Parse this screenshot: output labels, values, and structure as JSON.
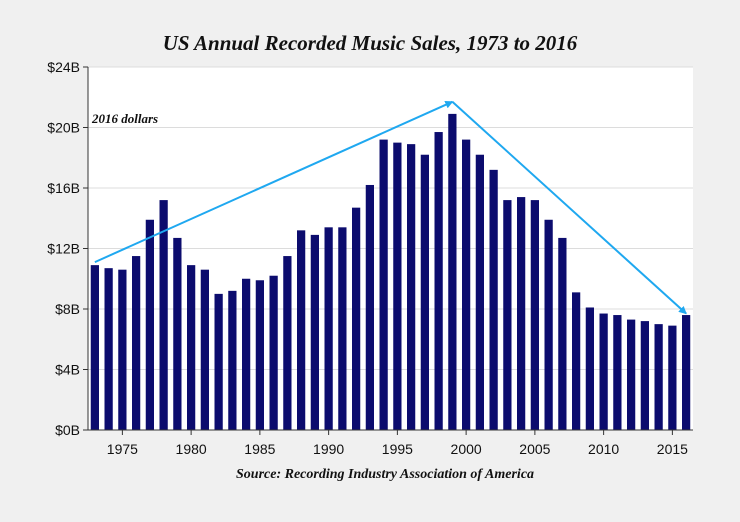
{
  "chart_data": {
    "type": "bar",
    "title": "US Annual Recorded Music Sales, 1973 to 2016",
    "source": "Source: Recording Industry Association of America",
    "unit_note": "2016 dollars",
    "xlabel": "",
    "ylabel": "",
    "ylim": [
      0,
      24
    ],
    "y_ticks": [
      0,
      4,
      8,
      12,
      16,
      20,
      24
    ],
    "y_tick_labels": [
      "$0B",
      "$4B",
      "$8B",
      "$12B",
      "$16B",
      "$20B",
      "$24B"
    ],
    "x_ticks": [
      1975,
      1980,
      1985,
      1990,
      1995,
      2000,
      2005,
      2010,
      2015
    ],
    "x_tick_labels": [
      "1975",
      "1980",
      "1985",
      "1990",
      "1995",
      "2000",
      "2005",
      "2010",
      "2015"
    ],
    "grid": true,
    "colors": {
      "bar": "#0c0c6e",
      "arrow": "#1fa8f0",
      "grid": "#dcdcdc",
      "plot_bg": "#ffffff",
      "background": "#f0f0f0"
    },
    "categories": [
      1973,
      1974,
      1975,
      1976,
      1977,
      1978,
      1979,
      1980,
      1981,
      1982,
      1983,
      1984,
      1985,
      1986,
      1987,
      1988,
      1989,
      1990,
      1991,
      1992,
      1993,
      1994,
      1995,
      1996,
      1997,
      1998,
      1999,
      2000,
      2001,
      2002,
      2003,
      2004,
      2005,
      2006,
      2007,
      2008,
      2009,
      2010,
      2011,
      2012,
      2013,
      2014,
      2015,
      2016
    ],
    "series": [
      {
        "name": "Recorded music sales (2016 $B)",
        "values": [
          10.9,
          10.7,
          10.6,
          11.5,
          13.9,
          15.2,
          12.7,
          10.9,
          10.6,
          9.0,
          9.2,
          10.0,
          9.9,
          10.2,
          11.5,
          13.2,
          12.9,
          13.4,
          13.4,
          14.7,
          16.2,
          19.2,
          19.0,
          18.9,
          18.2,
          19.7,
          20.9,
          19.2,
          18.2,
          17.2,
          15.2,
          15.4,
          15.2,
          13.9,
          12.7,
          9.1,
          8.1,
          7.7,
          7.6,
          7.3,
          7.2,
          7.0,
          6.9,
          7.6
        ]
      }
    ],
    "annotations": [
      {
        "type": "arrow",
        "from": [
          1973,
          11.1
        ],
        "to": [
          1999,
          21.7
        ]
      },
      {
        "type": "arrow",
        "from": [
          1999,
          21.7
        ],
        "to": [
          2016,
          7.7
        ]
      }
    ]
  }
}
